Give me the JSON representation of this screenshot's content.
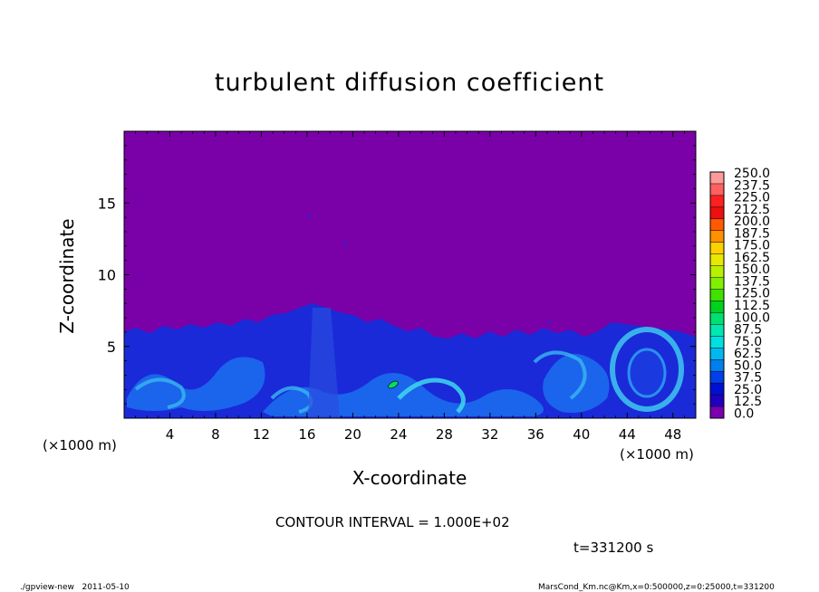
{
  "chart_data": {
    "type": "heatmap",
    "title": "turbulent diffusion coefficient",
    "xlabel": "X-coordinate",
    "ylabel": "Z-coordinate",
    "x_unit_left": "(×1000 m)",
    "x_unit_right": "(×1000 m)",
    "xlim": [
      0,
      50
    ],
    "ylim": [
      0,
      20
    ],
    "x_ticks": [
      4,
      8,
      12,
      16,
      20,
      24,
      28,
      32,
      36,
      40,
      44,
      48
    ],
    "y_ticks": [
      5,
      10,
      15
    ],
    "colorbar": {
      "levels": [
        "250.0",
        "237.5",
        "225.0",
        "212.5",
        "200.0",
        "187.5",
        "175.0",
        "162.5",
        "150.0",
        "137.5",
        "125.0",
        "112.5",
        "100.0",
        "87.5",
        "75.0",
        "62.5",
        "50.0",
        "37.5",
        "25.0",
        "12.5",
        "0.0"
      ],
      "colors": [
        "#ff9a9a",
        "#ff6060",
        "#ff2020",
        "#ee1010",
        "#ff5a00",
        "#ff9000",
        "#ffd000",
        "#e8e800",
        "#b8f000",
        "#80f000",
        "#40e000",
        "#00d020",
        "#00e070",
        "#00e8b0",
        "#00e0e0",
        "#00b8f0",
        "#0080f0",
        "#0040e8",
        "#0010d0",
        "#2000c0",
        "#7a00b0"
      ]
    },
    "background_value_color": "#7a00a8",
    "contour_interval_text": "CONTOUR INTERVAL = 1.000E+02",
    "time_text": "t=331200 s",
    "footer_left": "./gpview-new   2011-05-10",
    "footer_right": "MarsCond_Km.nc@Km,x=0:500000,z=0:25000,t=331200"
  }
}
